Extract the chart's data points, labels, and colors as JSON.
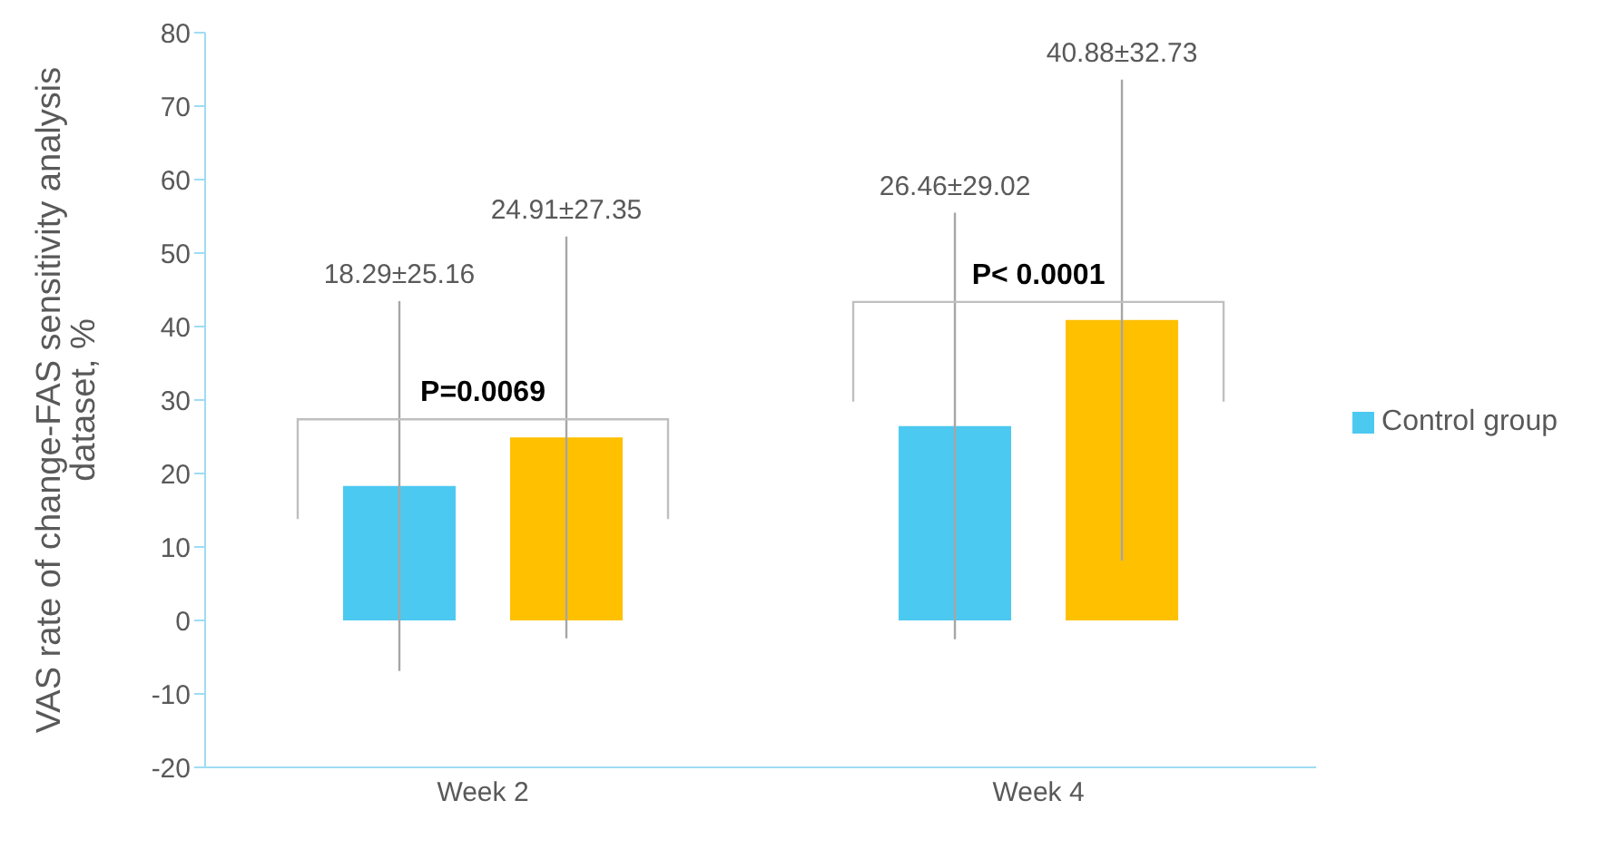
{
  "chart_data": {
    "type": "bar",
    "ylabel": "VAS rate of change-FAS sensitivity analysis dataset, %",
    "categories": [
      "Week 2",
      "Week 4"
    ],
    "series": [
      {
        "name": "Control group",
        "color": "#4cc9f0",
        "values": [
          18.29,
          26.46
        ],
        "errors": [
          25.16,
          29.02
        ]
      },
      {
        "color": "#ffc000",
        "values": [
          24.91,
          40.88
        ],
        "errors": [
          27.35,
          32.73
        ]
      }
    ],
    "annotations": [
      "18.29±25.16",
      "24.91±27.35",
      "P=0.0069",
      "26.46±29.02",
      "40.88±32.73",
      "P< 0.0001"
    ],
    "ylim": [
      -20,
      80
    ],
    "yticks": [
      -20,
      -10,
      0,
      10,
      20,
      30,
      40,
      50,
      60,
      70,
      80
    ],
    "grid": false,
    "legend": "right"
  }
}
